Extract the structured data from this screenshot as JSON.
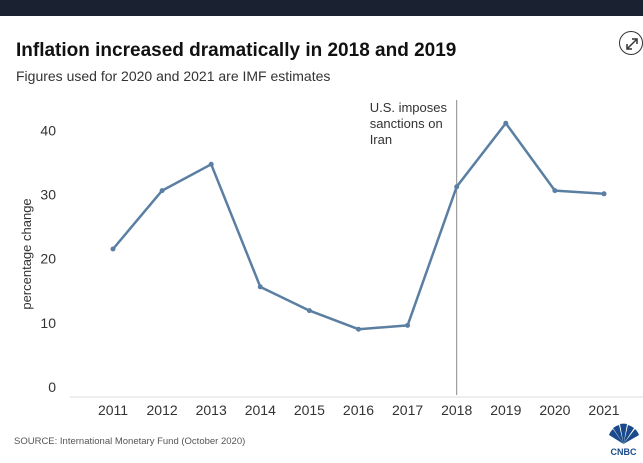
{
  "header": {
    "title": "Inflation increased dramatically in 2018 and 2019",
    "subtitle": "Figures used for 2020 and 2021 are IMF estimates"
  },
  "footer": {
    "source": "SOURCE: International Monetary Fund (October 2020)",
    "logo_text": "CNBC"
  },
  "icons": {
    "expand": "expand-arrows-icon",
    "logo": "cnbc-peacock-logo"
  },
  "colors": {
    "line": "#5a7fa3",
    "top_bar": "#1a2232",
    "marker_line": "#888888"
  },
  "chart_data": {
    "type": "line",
    "x": [
      "2011",
      "2012",
      "2013",
      "2014",
      "2015",
      "2016",
      "2017",
      "2018",
      "2019",
      "2020",
      "2021"
    ],
    "values": [
      21.5,
      30.6,
      34.7,
      15.6,
      11.9,
      9.0,
      9.6,
      31.2,
      41.1,
      30.6,
      30.1
    ],
    "ylabel": "percentage change",
    "ylim": [
      0,
      43
    ],
    "yticks": [
      0,
      10,
      20,
      30,
      40
    ],
    "grid": false,
    "annotation": {
      "x": "2018",
      "lines": [
        "U.S. imposes",
        "sanctions on",
        "Iran"
      ]
    }
  }
}
